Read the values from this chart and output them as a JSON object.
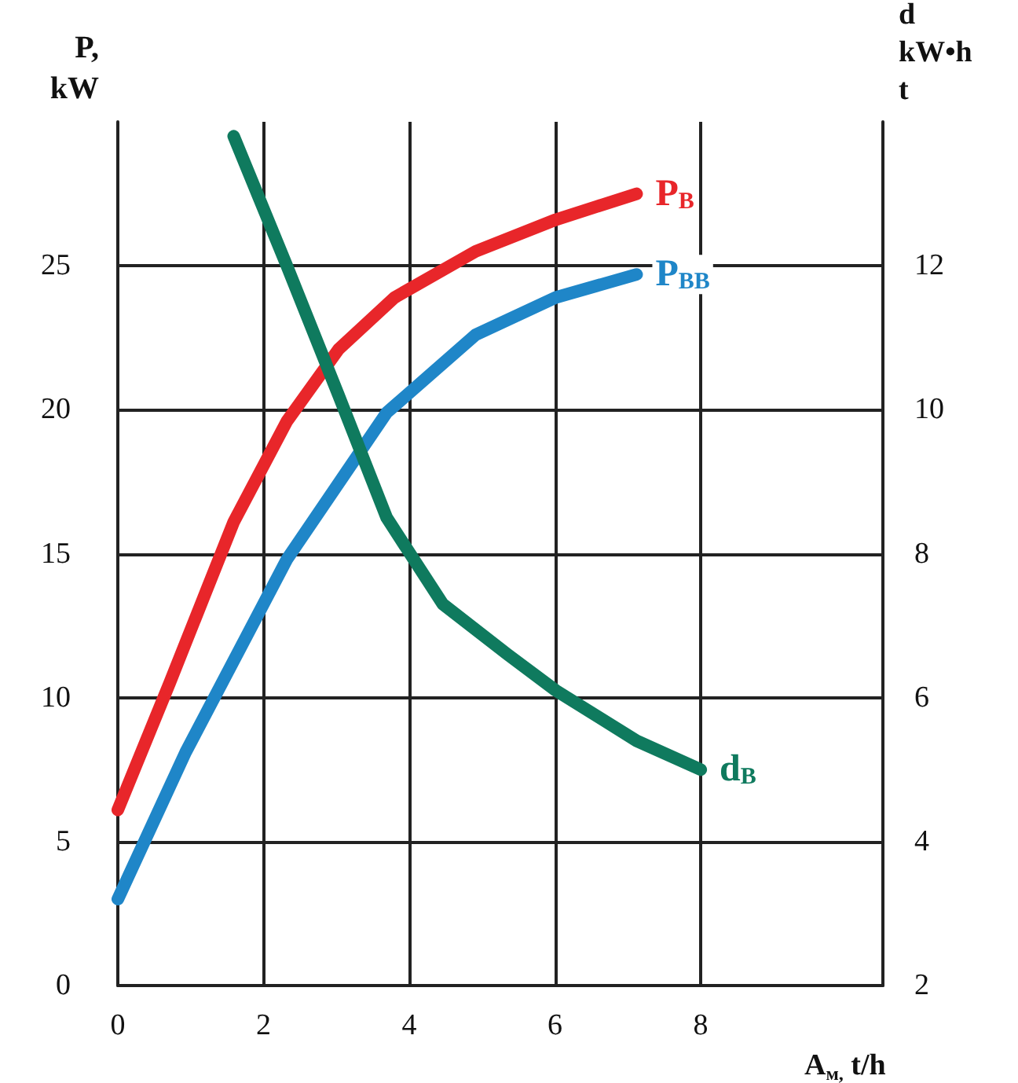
{
  "chart_data": {
    "type": "line",
    "xlabel": "A$_{м,}$ t/h",
    "ylabel": "P,\nkW",
    "y2label": "d\nkW•h\nt",
    "xlim": [
      0,
      10.5
    ],
    "xticks": [
      0,
      2,
      4,
      6,
      8
    ],
    "ylim": [
      0,
      30
    ],
    "yticks": [
      0,
      5,
      10,
      15,
      20,
      25
    ],
    "y2lim": [
      2,
      14
    ],
    "y2ticks": [
      2,
      4,
      6,
      8,
      10,
      12
    ],
    "grid": true,
    "legend": false,
    "line_style": "solid",
    "series": [
      {
        "name": "P$_{B}$",
        "color": "#e8262a",
        "x": [
          0,
          0.71,
          1.59,
          2.32,
          3.03,
          3.8,
          4.91,
          6.01,
          7.12
        ],
        "values": [
          6.1,
          10.5,
          16.1,
          19.6,
          22.1,
          23.9,
          25.5,
          26.6,
          27.5
        ]
      },
      {
        "name": "P$_{BB}$",
        "color": "#1f86c8",
        "x": [
          0,
          0.93,
          2.32,
          3.69,
          4.91,
          6.01,
          7.12
        ],
        "values": [
          3.0,
          8.1,
          14.8,
          19.9,
          22.6,
          23.9,
          24.7
        ]
      },
      {
        "name": "d$_{B}$",
        "color": "#0f7a5e",
        "axis": "y2",
        "x": [
          1.59,
          2.32,
          3.03,
          3.69,
          4.46,
          5.35,
          6.01,
          7.12,
          8.0
        ],
        "values": [
          13.8,
          12.0,
          10.2,
          8.5,
          7.3,
          6.6,
          6.1,
          5.4,
          5.0
        ]
      }
    ]
  }
}
